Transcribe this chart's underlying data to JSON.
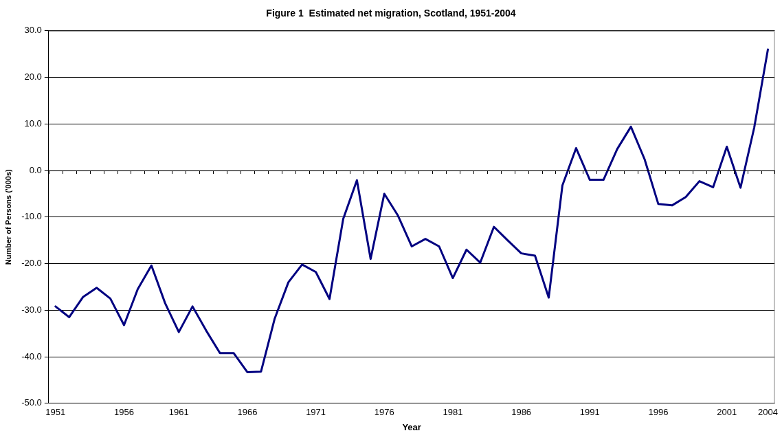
{
  "chart_data": {
    "type": "line",
    "title": "Figure 1  Estimated net migration, Scotland, 1951-2004",
    "xlabel": "Year",
    "ylabel": "Number of Persons ('000s)",
    "categories": [
      "1951",
      null,
      null,
      null,
      null,
      "1956",
      null,
      null,
      null,
      "1961",
      null,
      null,
      null,
      null,
      "1966",
      null,
      null,
      null,
      null,
      "1971",
      null,
      null,
      null,
      null,
      "1976",
      null,
      null,
      null,
      null,
      "1981",
      null,
      null,
      null,
      null,
      "1986",
      null,
      null,
      null,
      null,
      "1991",
      null,
      null,
      null,
      null,
      "1996",
      null,
      null,
      null,
      null,
      "2001",
      null,
      null,
      "2004"
    ],
    "series": [
      {
        "color": "#000080",
        "values": [
          -29.2,
          -31.5,
          -27.2,
          -25.2,
          -27.5,
          -33.2,
          -25.5,
          -20.4,
          -28.5,
          -34.7,
          -29.2,
          -34.4,
          -39.2,
          -39.2,
          -43.3,
          -43.2,
          -31.8,
          -24.0,
          -20.2,
          -21.8,
          -27.6,
          -10.4,
          -2.1,
          -19.0,
          -5.0,
          -9.7,
          -16.3,
          -14.7,
          -16.3,
          -23.1,
          -17.0,
          -19.8,
          -12.1,
          -15.0,
          -17.8,
          -18.3,
          -27.3,
          -3.2,
          4.8,
          -2.0,
          -2.0,
          4.6,
          9.4,
          2.4,
          -7.2,
          -7.5,
          -5.7,
          -2.3,
          -3.6,
          5.1,
          -3.7,
          9.2,
          26.0
        ]
      }
    ],
    "ylim": [
      -50,
      30
    ],
    "yticks": [
      {
        "value": -50,
        "label": "-50.0"
      },
      {
        "value": -40,
        "label": "-40.0"
      },
      {
        "value": -30,
        "label": "-30.0"
      },
      {
        "value": -20,
        "label": "-20.0"
      },
      {
        "value": -10,
        "label": "-10.0"
      },
      {
        "value": 0,
        "label": "0.0"
      },
      {
        "value": 10,
        "label": "10.0"
      },
      {
        "value": 20,
        "label": "20.0"
      },
      {
        "value": 30,
        "label": "30.0"
      }
    ],
    "grid": "y",
    "legend": false,
    "marker": "none",
    "line_style": "solid"
  }
}
